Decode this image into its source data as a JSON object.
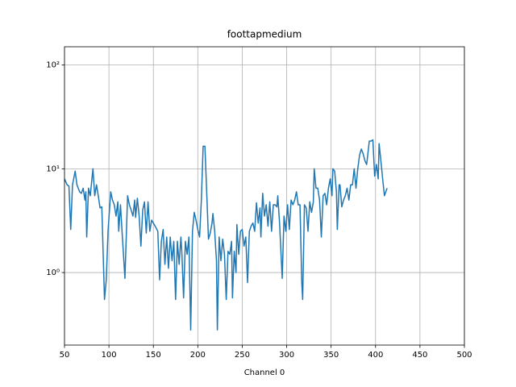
{
  "chart_data": {
    "type": "line",
    "title": "foottapmedium",
    "xlabel": "Channel 0",
    "color": "#1f77b4",
    "grid": true,
    "ylog": true,
    "xlim": [
      50,
      500
    ],
    "ylim": [
      0.2,
      150
    ],
    "xticks": [
      50,
      100,
      150,
      200,
      250,
      300,
      350,
      400,
      450,
      500
    ],
    "yticks": [
      {
        "value": 1,
        "label": "10⁰"
      },
      {
        "value": 10,
        "label": "10¹"
      },
      {
        "value": 100,
        "label": "10²"
      }
    ],
    "x": [
      50,
      53,
      55,
      57,
      59,
      62,
      64,
      67,
      69,
      71,
      73,
      74,
      75,
      77,
      79,
      82,
      84,
      86,
      88,
      90,
      92,
      95,
      97,
      99,
      102,
      104,
      106,
      108,
      110,
      111,
      113,
      115,
      118,
      121,
      123,
      125,
      127,
      129,
      130,
      132,
      134,
      136,
      138,
      140,
      142,
      144,
      146,
      148,
      150,
      153,
      155,
      157,
      159,
      161,
      163,
      165,
      167,
      169,
      171,
      173,
      175,
      177,
      179,
      181,
      182,
      184,
      186,
      188,
      190,
      192,
      194,
      196,
      198,
      200,
      202,
      204,
      206,
      208,
      210,
      212,
      214,
      216,
      217,
      219,
      221,
      222,
      224,
      226,
      228,
      230,
      232,
      234,
      236,
      238,
      239,
      241,
      243,
      244,
      246,
      248,
      250,
      252,
      254,
      256,
      258,
      260,
      262,
      264,
      266,
      268,
      270,
      271,
      273,
      275,
      277,
      279,
      281,
      283,
      285,
      287,
      289,
      290,
      292,
      295,
      297,
      299,
      301,
      303,
      305,
      307,
      309,
      311,
      313,
      315,
      317,
      318,
      320,
      322,
      324,
      326,
      328,
      330,
      331,
      333,
      335,
      337,
      339,
      341,
      343,
      345,
      347,
      349,
      351,
      352,
      354,
      356,
      357,
      359,
      360,
      362,
      364,
      366,
      368,
      370,
      372,
      374,
      376,
      378,
      380,
      382,
      384,
      386,
      388,
      390,
      393,
      395,
      397,
      399,
      401,
      403,
      404,
      406,
      408,
      410,
      413
    ],
    "values": [
      8,
      7,
      6.8,
      2.6,
      7,
      9.5,
      7,
      6,
      5.8,
      6.5,
      5,
      6,
      2.2,
      6.5,
      5.5,
      10,
      5.5,
      7,
      5.5,
      4.2,
      4.3,
      0.55,
      0.85,
      2.5,
      6,
      5,
      4.5,
      3.5,
      4.8,
      2.5,
      4.5,
      2.3,
      0.88,
      5.5,
      4.5,
      4,
      3.5,
      5,
      3.4,
      5.2,
      3.5,
      1.8,
      4,
      4.8,
      2.4,
      4.8,
      2.5,
      3.2,
      3,
      2.7,
      2.5,
      0.85,
      2,
      2.6,
      1.2,
      2.2,
      1.1,
      2.2,
      1.3,
      2,
      0.55,
      2,
      1.2,
      2.2,
      1.6,
      0.57,
      2,
      1.5,
      2.2,
      0.28,
      2.5,
      3.8,
      3.2,
      2.6,
      2.2,
      5,
      16.5,
      16.5,
      6,
      2.1,
      2.4,
      3,
      3.7,
      2.5,
      1.3,
      0.28,
      2.2,
      1.3,
      2.1,
      1.5,
      0.55,
      1.6,
      1.5,
      2,
      0.57,
      1.6,
      1,
      2.9,
      1.5,
      2.5,
      2.6,
      1.8,
      2.2,
      0.8,
      2.5,
      2.8,
      3,
      2.5,
      4.7,
      3,
      4.2,
      2.2,
      5.8,
      3.5,
      4.5,
      2.8,
      4.8,
      2.5,
      4.5,
      4.5,
      4.3,
      5.5,
      3,
      0.88,
      3.5,
      2.5,
      4.5,
      2.6,
      5,
      4.5,
      5,
      6,
      4.5,
      4.5,
      0.8,
      0.55,
      4.5,
      4.2,
      2.5,
      4.8,
      3.8,
      4.8,
      10,
      6.5,
      6.5,
      5,
      2.2,
      5.5,
      5.8,
      4.5,
      6.5,
      8,
      5.5,
      10,
      9.5,
      6,
      2.6,
      7,
      7,
      4.3,
      5,
      5.5,
      6.5,
      5,
      7,
      7,
      10,
      6.5,
      10,
      13.5,
      15.5,
      14,
      12,
      11,
      18.5,
      18.5,
      19,
      8.5,
      11,
      8,
      17.5,
      12,
      8,
      5.5,
      6.5
    ]
  }
}
